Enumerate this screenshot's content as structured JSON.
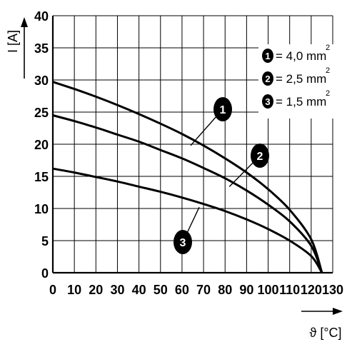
{
  "chart_data": {
    "type": "line",
    "xlabel": "ϑ [°C]",
    "ylabel": "I [A]",
    "xlim": [
      0,
      130
    ],
    "ylim": [
      0,
      40
    ],
    "x_ticks": [
      "0",
      "10",
      "20",
      "30",
      "40",
      "50",
      "60",
      "70",
      "80",
      "90",
      "100",
      "110",
      "120",
      "130"
    ],
    "y_ticks": [
      "0",
      "5",
      "10",
      "15",
      "20",
      "25",
      "30",
      "35",
      "40"
    ],
    "grid": true,
    "legend_placement": "top-right",
    "legend": [
      {
        "badge": "1",
        "text": "= 4,0 mm",
        "sup": "2"
      },
      {
        "badge": "2",
        "text": "= 2,5 mm",
        "sup": "2"
      },
      {
        "badge": "3",
        "text": "= 1,5 mm",
        "sup": "2"
      }
    ],
    "series": [
      {
        "badge": "1",
        "x": [
          0,
          10,
          20,
          30,
          40,
          50,
          60,
          70,
          80,
          90,
          100,
          110,
          120,
          125
        ],
        "y": [
          29.7,
          28.6,
          27.4,
          26.1,
          24.7,
          23.2,
          21.6,
          19.8,
          17.8,
          15.6,
          13.0,
          9.8,
          5.2,
          0
        ]
      },
      {
        "badge": "2",
        "x": [
          0,
          10,
          20,
          30,
          40,
          50,
          60,
          70,
          80,
          90,
          100,
          110,
          120,
          125
        ],
        "y": [
          24.5,
          23.6,
          22.6,
          21.5,
          20.4,
          19.1,
          17.8,
          16.3,
          14.7,
          12.8,
          10.6,
          8.0,
          4.2,
          0
        ]
      },
      {
        "badge": "3",
        "x": [
          0,
          10,
          20,
          30,
          40,
          50,
          60,
          70,
          80,
          90,
          100,
          110,
          120,
          125
        ],
        "y": [
          16.2,
          15.6,
          14.9,
          14.2,
          13.4,
          12.6,
          11.7,
          10.7,
          9.6,
          8.3,
          6.8,
          5.0,
          2.6,
          0
        ]
      }
    ],
    "annotations": [
      {
        "badge": "1",
        "x": 64,
        "y": 19.8
      },
      {
        "badge": "2",
        "x": 82,
        "y": 13.4
      },
      {
        "badge": "3",
        "x": 68,
        "y": 10.2
      }
    ]
  }
}
